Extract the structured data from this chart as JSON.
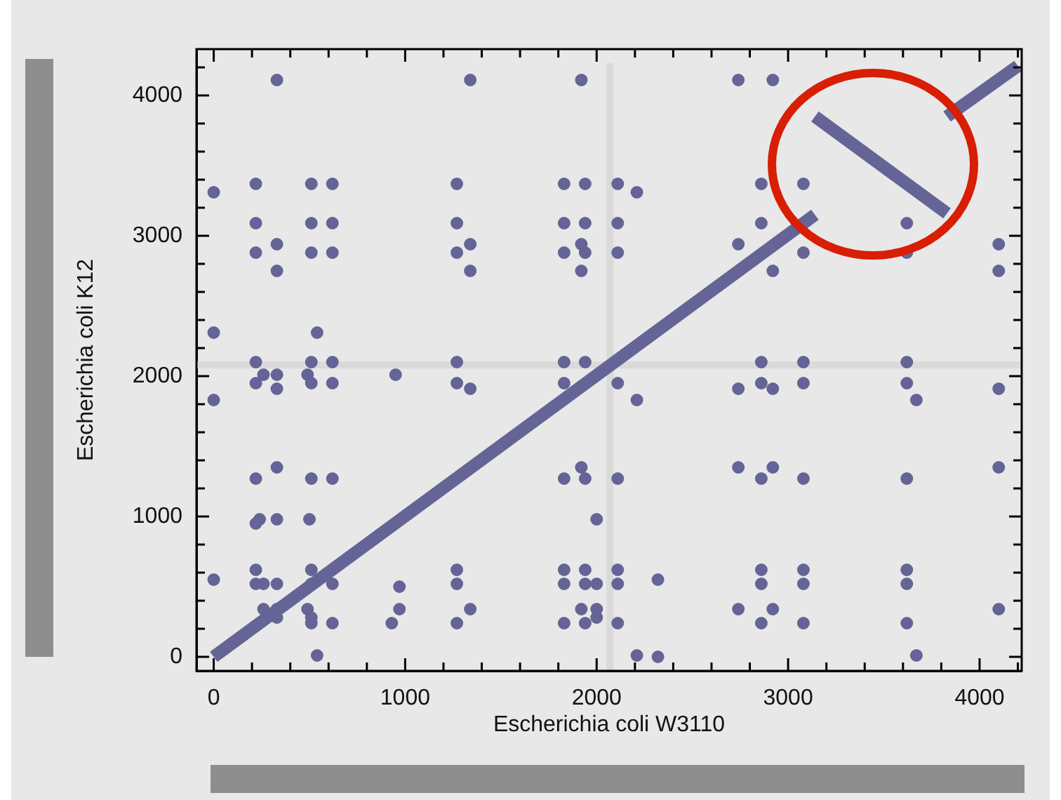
{
  "chart_data": {
    "type": "scatter",
    "xlabel": "Escherichia coli W3110",
    "ylabel": "Escherichia coli K12",
    "xlim": [
      -90,
      4220
    ],
    "ylim": [
      -100,
      4330
    ],
    "xticks": [
      0,
      {
        "value": 200,
        "label": null
      },
      {
        "value": 400,
        "label": null
      },
      {
        "value": 600,
        "label": null
      },
      {
        "value": 800,
        "label": null
      },
      1000,
      {
        "value": 1200,
        "label": null
      },
      {
        "value": 1400,
        "label": null
      },
      {
        "value": 1600,
        "label": null
      },
      {
        "value": 1800,
        "label": null
      },
      2000,
      {
        "value": 2200,
        "label": null
      },
      {
        "value": 2400,
        "label": null
      },
      {
        "value": 2600,
        "label": null
      },
      {
        "value": 2800,
        "label": null
      },
      3000,
      {
        "value": 3200,
        "label": null
      },
      {
        "value": 3400,
        "label": null
      },
      {
        "value": 3600,
        "label": null
      },
      {
        "value": 3800,
        "label": null
      },
      4000,
      {
        "value": 4200,
        "label": null
      }
    ],
    "yticks": [
      0,
      {
        "value": 200,
        "label": null
      },
      {
        "value": 400,
        "label": null
      },
      {
        "value": 600,
        "label": null
      },
      {
        "value": 800,
        "label": null
      },
      1000,
      {
        "value": 1200,
        "label": null
      },
      {
        "value": 1400,
        "label": null
      },
      {
        "value": 1600,
        "label": null
      },
      {
        "value": 1800,
        "label": null
      },
      2000,
      {
        "value": 2200,
        "label": null
      },
      {
        "value": 2400,
        "label": null
      },
      {
        "value": 2600,
        "label": null
      },
      {
        "value": 2800,
        "label": null
      },
      3000,
      {
        "value": 3200,
        "label": null
      },
      {
        "value": 3400,
        "label": null
      },
      {
        "value": 3600,
        "label": null
      },
      {
        "value": 3800,
        "label": null
      },
      4000,
      {
        "value": 4200,
        "label": null
      }
    ],
    "grid": false,
    "legend": false,
    "marker": "circle",
    "ref_lines": [
      {
        "axis": "x",
        "value": 2070,
        "color": "#dadada"
      },
      {
        "axis": "y",
        "value": 2080,
        "color": "#dadada"
      }
    ],
    "series": [
      {
        "color": "#646496",
        "x": [
          330,
          1340,
          1920,
          2740,
          2920,
          220,
          510,
          620,
          1270,
          1830,
          1940,
          2110,
          2860,
          3080,
          0,
          2210,
          220,
          510,
          620,
          1270,
          1830,
          1940,
          2110,
          2860,
          3620,
          330,
          1340,
          1920,
          2740,
          4100,
          220,
          510,
          620,
          1270,
          1830,
          1940,
          2110,
          3080,
          3620,
          330,
          1340,
          1920,
          2920,
          4100,
          0,
          540,
          220,
          510,
          620,
          1270,
          1830,
          1940,
          2860,
          3080,
          3620,
          260,
          330,
          490,
          950,
          220,
          510,
          620,
          1270,
          1830,
          2110,
          2860,
          3080,
          3620,
          330,
          1340,
          2740,
          2920,
          4100,
          0,
          2210,
          3670,
          330,
          1920,
          2740,
          2920,
          4100,
          220,
          510,
          620,
          1830,
          1940,
          2110,
          2860,
          3080,
          3620,
          240,
          330,
          500,
          2000,
          220,
          220,
          510,
          1270,
          1830,
          1940,
          2110,
          2860,
          3080,
          3620,
          0,
          2320,
          220,
          510,
          620,
          1270,
          1830,
          1940,
          260,
          330,
          2000,
          2110,
          2860,
          3080,
          3620,
          970,
          260,
          330,
          490,
          970,
          1340,
          1920,
          2000,
          2740,
          2920,
          4100,
          330,
          510,
          2000,
          510,
          620,
          930,
          1270,
          1830,
          1940,
          2110,
          2860,
          3080,
          3620,
          540,
          2210,
          3670,
          2320
        ],
        "values": [
          4110,
          4110,
          4110,
          4110,
          4110,
          3370,
          3370,
          3370,
          3370,
          3370,
          3370,
          3370,
          3370,
          3370,
          3310,
          3310,
          3090,
          3090,
          3090,
          3090,
          3090,
          3090,
          3090,
          3090,
          3090,
          2940,
          2940,
          2940,
          2940,
          2940,
          2880,
          2880,
          2880,
          2880,
          2880,
          2880,
          2880,
          2880,
          2880,
          2750,
          2750,
          2750,
          2750,
          2750,
          2310,
          2310,
          2100,
          2100,
          2100,
          2100,
          2100,
          2100,
          2100,
          2100,
          2100,
          2010,
          2010,
          2010,
          2010,
          1950,
          1950,
          1950,
          1950,
          1950,
          1950,
          1950,
          1950,
          1950,
          1910,
          1910,
          1910,
          1910,
          1910,
          1830,
          1830,
          1830,
          1350,
          1350,
          1350,
          1350,
          1350,
          1270,
          1270,
          1270,
          1270,
          1270,
          1270,
          1270,
          1270,
          1270,
          980,
          980,
          980,
          980,
          950,
          620,
          620,
          620,
          620,
          620,
          620,
          620,
          620,
          620,
          550,
          550,
          520,
          520,
          520,
          520,
          520,
          520,
          520,
          520,
          520,
          520,
          520,
          520,
          520,
          500,
          340,
          340,
          340,
          340,
          340,
          340,
          340,
          340,
          340,
          340,
          280,
          280,
          280,
          240,
          240,
          240,
          240,
          240,
          240,
          240,
          240,
          240,
          240,
          10,
          10,
          10,
          0
        ]
      },
      {
        "type": "line",
        "marker": "none",
        "color": "#646496",
        "x": [
          0,
          3140
        ],
        "values": [
          0,
          3150
        ]
      },
      {
        "type": "line",
        "marker": "none",
        "color": "#646496",
        "x": [
          3140,
          3830
        ],
        "values": [
          3850,
          3160
        ]
      },
      {
        "type": "line",
        "marker": "none",
        "color": "#646496",
        "x": [
          3830,
          4200
        ],
        "values": [
          3850,
          4210
        ]
      }
    ]
  }
}
